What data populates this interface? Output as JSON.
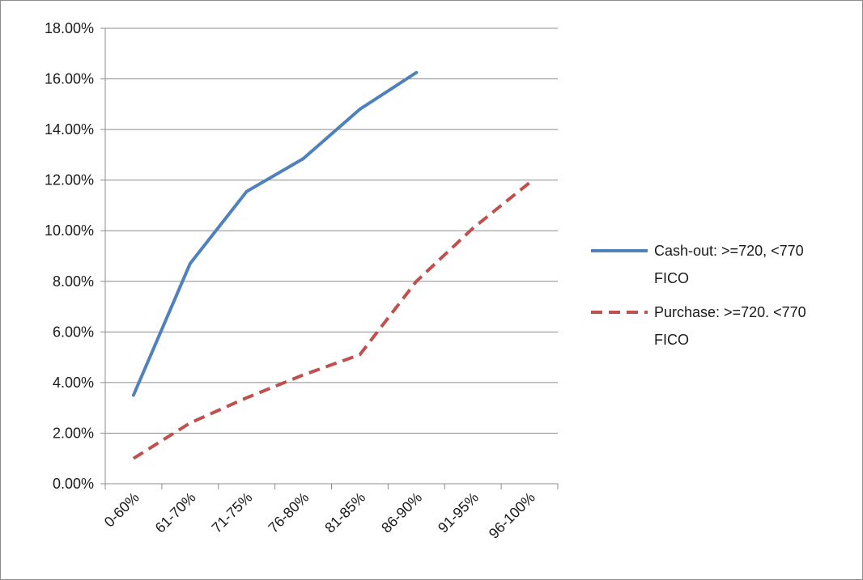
{
  "chart_data": {
    "type": "line",
    "title": "",
    "xlabel": "",
    "ylabel": "",
    "categories": [
      "0-60%",
      "61-70%",
      "71-75%",
      "76-80%",
      "81-85%",
      "86-90%",
      "91-95%",
      "96-100%"
    ],
    "y_ticks": [
      "0.00%",
      "2.00%",
      "4.00%",
      "6.00%",
      "8.00%",
      "10.00%",
      "12.00%",
      "14.00%",
      "16.00%",
      "18.00%"
    ],
    "ylim": [
      0,
      0.18
    ],
    "y_step": 0.02,
    "grid": true,
    "legend_position": "right",
    "series": [
      {
        "name": "Cash-out: >=720, <770 FICO",
        "legend_lines": [
          "Cash-out: >=720, <770",
          "FICO"
        ],
        "color": "#4F81BD",
        "style": "solid",
        "values": [
          0.035,
          0.087,
          0.1155,
          0.1285,
          0.148,
          0.1625,
          null,
          null
        ]
      },
      {
        "name": "Purchase: >=720. <770 FICO",
        "legend_lines": [
          "Purchase: >=720. <770",
          "FICO"
        ],
        "color": "#C0504D",
        "style": "dashed",
        "values": [
          0.01,
          0.024,
          0.034,
          0.043,
          0.051,
          0.08,
          0.101,
          0.119
        ]
      }
    ]
  }
}
